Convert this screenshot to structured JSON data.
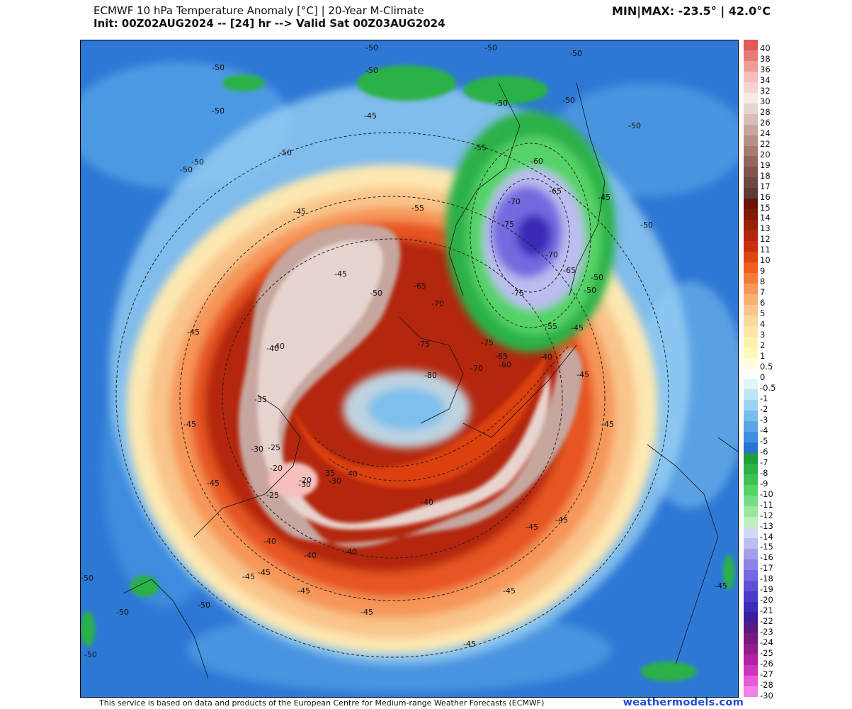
{
  "header": {
    "title_line1": "ECMWF 10 hPa Temperature Anomaly [°C] | 20-Year M-Climate",
    "title_line2": "Init: 00Z02AUG2024 -- [24] hr --> Valid Sat 00Z03AUG2024",
    "minmax": "MIN|MAX: -23.5° | 42.0°C"
  },
  "colorbar": {
    "labels": [
      "40",
      "38",
      "36",
      "34",
      "32",
      "30",
      "28",
      "26",
      "24",
      "22",
      "20",
      "19",
      "18",
      "17",
      "16",
      "15",
      "14",
      "13",
      "12",
      "11",
      "10",
      "9",
      "8",
      "7",
      "6",
      "5",
      "4",
      "3",
      "2",
      "1",
      "0.5",
      "0",
      "-0.5",
      "-1",
      "-2",
      "-3",
      "-4",
      "-5",
      "-6",
      "-7",
      "-8",
      "-9",
      "-10",
      "-11",
      "-12",
      "-13",
      "-14",
      "-15",
      "-16",
      "-17",
      "-18",
      "-19",
      "-20",
      "-21",
      "-22",
      "-23",
      "-24",
      "-25",
      "-26",
      "-27",
      "-28",
      "-30"
    ],
    "colors": [
      "#e05a57",
      "#e67b76",
      "#ee9b97",
      "#f5bfbe",
      "#f8d3d2",
      "#faeae6",
      "#e8d4cf",
      "#d8beb8",
      "#c6a69f",
      "#b88f88",
      "#a67a73",
      "#946660",
      "#82544f",
      "#6f4642",
      "#5b3a37",
      "#6a1408",
      "#801a08",
      "#981f0a",
      "#b4270c",
      "#c8300d",
      "#e0440f",
      "#f05d1c",
      "#f47a3a",
      "#f69659",
      "#f8af74",
      "#f9c58b",
      "#fbd89e",
      "#fce6a8",
      "#fef1b0",
      "#fff8b8",
      "#fffde0",
      "#ffffff",
      "#dff4fb",
      "#bfe6f7",
      "#9cd3f3",
      "#78bdee",
      "#5aa6e8",
      "#3d8fe0",
      "#2a72d4",
      "#1f9e3c",
      "#2cb147",
      "#3cc353",
      "#55d366",
      "#78de83",
      "#9be7a2",
      "#bdefbf",
      "#d3d9f4",
      "#bcbdf0",
      "#a39fec",
      "#8c84e6",
      "#7569df",
      "#6050d5",
      "#4b3bc9",
      "#3a2cb8",
      "#3a1f99",
      "#5a1a84",
      "#77197f",
      "#931c8e",
      "#b321a3",
      "#cf32c0",
      "#e75bd9",
      "#f182e8"
    ],
    "min": -30,
    "max": 40
  },
  "map": {
    "background": "#2f79d6",
    "contour_labels": [
      {
        "text": "-50"
      },
      {
        "text": "-50"
      },
      {
        "text": "-50"
      },
      {
        "text": "-50"
      },
      {
        "text": "-50"
      },
      {
        "text": "-50"
      },
      {
        "text": "-50"
      },
      {
        "text": "-50"
      },
      {
        "text": "-50"
      },
      {
        "text": "-50"
      },
      {
        "text": "-50"
      },
      {
        "text": "-50"
      },
      {
        "text": "-55"
      },
      {
        "text": "-60"
      },
      {
        "text": "-65"
      },
      {
        "text": "-70"
      },
      {
        "text": "-75"
      },
      {
        "text": "-70"
      },
      {
        "text": "-65"
      },
      {
        "text": "-75"
      },
      {
        "text": "-50"
      },
      {
        "text": "-50"
      },
      {
        "text": "-45"
      },
      {
        "text": "-45"
      },
      {
        "text": "-45"
      },
      {
        "text": "-55"
      },
      {
        "text": "-50"
      },
      {
        "text": "-65"
      },
      {
        "text": "-70"
      },
      {
        "text": "-75"
      },
      {
        "text": "-80"
      },
      {
        "text": "-75"
      },
      {
        "text": "-70"
      },
      {
        "text": "-65"
      },
      {
        "text": "-60"
      },
      {
        "text": "-55"
      },
      {
        "text": "-45"
      },
      {
        "text": "-40"
      },
      {
        "text": "-45"
      },
      {
        "text": "-40"
      },
      {
        "text": "-35"
      },
      {
        "text": "-30"
      },
      {
        "text": "-25"
      },
      {
        "text": "-20"
      },
      {
        "text": "-20"
      },
      {
        "text": "-25"
      },
      {
        "text": "-30"
      },
      {
        "text": "35"
      },
      {
        "text": "-30"
      },
      {
        "text": "40"
      },
      {
        "text": "-40"
      },
      {
        "text": "-45"
      },
      {
        "text": "-45"
      },
      {
        "text": "-45"
      },
      {
        "text": "-45"
      },
      {
        "text": "-40"
      },
      {
        "text": "-40"
      },
      {
        "text": "-40"
      },
      {
        "text": "-45"
      },
      {
        "text": "-45"
      },
      {
        "text": "-45"
      },
      {
        "text": "-45"
      },
      {
        "text": "-45"
      },
      {
        "text": "-50"
      },
      {
        "text": "-50"
      },
      {
        "text": "-50"
      },
      {
        "text": "-50"
      },
      {
        "text": "-45"
      },
      {
        "text": "-45"
      },
      {
        "text": "-45"
      },
      {
        "text": "-45"
      },
      {
        "text": "-40"
      },
      {
        "text": "-50"
      },
      {
        "text": "-45"
      }
    ]
  },
  "footer": {
    "attribution": "This service is based on data and products of the European Centre for Medium-range Weather Forecasts (ECMWF)",
    "brand": "weathermodels.com"
  }
}
